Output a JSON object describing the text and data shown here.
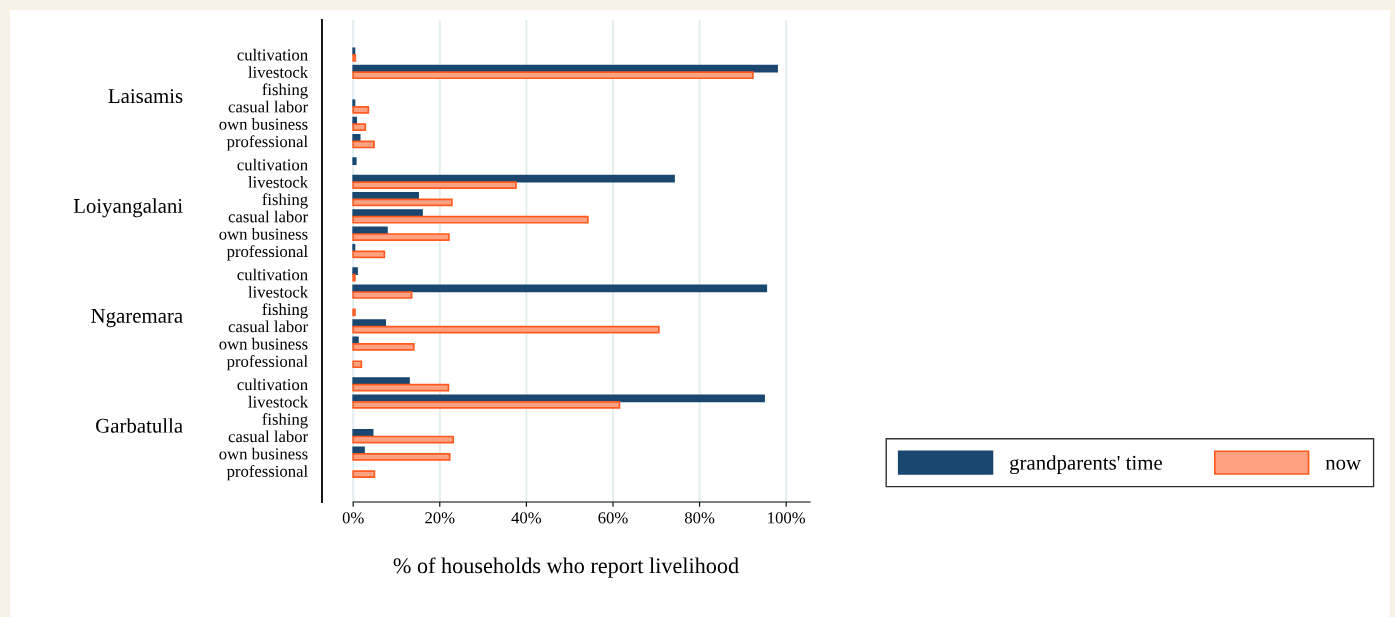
{
  "chart_data": {
    "type": "bar",
    "orientation": "horizontal",
    "xlabel": "% of households who report livelihood",
    "categories": [
      "cultivation",
      "livestock",
      "fishing",
      "casual labor",
      "own business",
      "professional",
      "cultivation",
      "livestock",
      "fishing",
      "casual labor",
      "own business",
      "professional",
      "cultivation",
      "livestock",
      "fishing",
      "casual labor",
      "own business",
      "professional",
      "cultivation",
      "livestock",
      "fishing",
      "casual labor",
      "own business",
      "professional"
    ],
    "annotations": [
      "Laisamis",
      "Loiyangalani",
      "Ngaremara",
      "Garbatulla"
    ],
    "series": [
      {
        "name": "grandparents' time",
        "color": "#1a476f",
        "values": [
          0.3,
          97.9,
          0,
          0.3,
          0.7,
          1.5,
          0.6,
          74.1,
          15.0,
          15.9,
          7.8,
          0.3,
          0.9,
          95.4,
          0,
          7.4,
          1.1,
          0,
          12.9,
          94.9,
          0,
          4.5,
          2.5,
          0
        ]
      },
      {
        "name": "now",
        "color": "#fca283",
        "values": [
          0.5,
          92.3,
          0,
          3.5,
          2.8,
          4.8,
          0,
          37.6,
          22.8,
          54.2,
          22.1,
          7.2,
          0.4,
          13.5,
          0.4,
          70.6,
          14.0,
          1.9,
          22.0,
          61.5,
          0,
          23.1,
          22.3,
          4.9
        ]
      }
    ],
    "xlim": [
      -7.2,
      105.5
    ],
    "xticks": [
      {
        "value": 0,
        "label": "0%"
      },
      {
        "value": 20,
        "label": "20%"
      },
      {
        "value": 40,
        "label": "40%"
      },
      {
        "value": 60,
        "label": "60%"
      },
      {
        "value": 80,
        "label": "80%"
      },
      {
        "value": 100,
        "label": "100%"
      }
    ],
    "grid": "x",
    "legend": "bottom right"
  }
}
